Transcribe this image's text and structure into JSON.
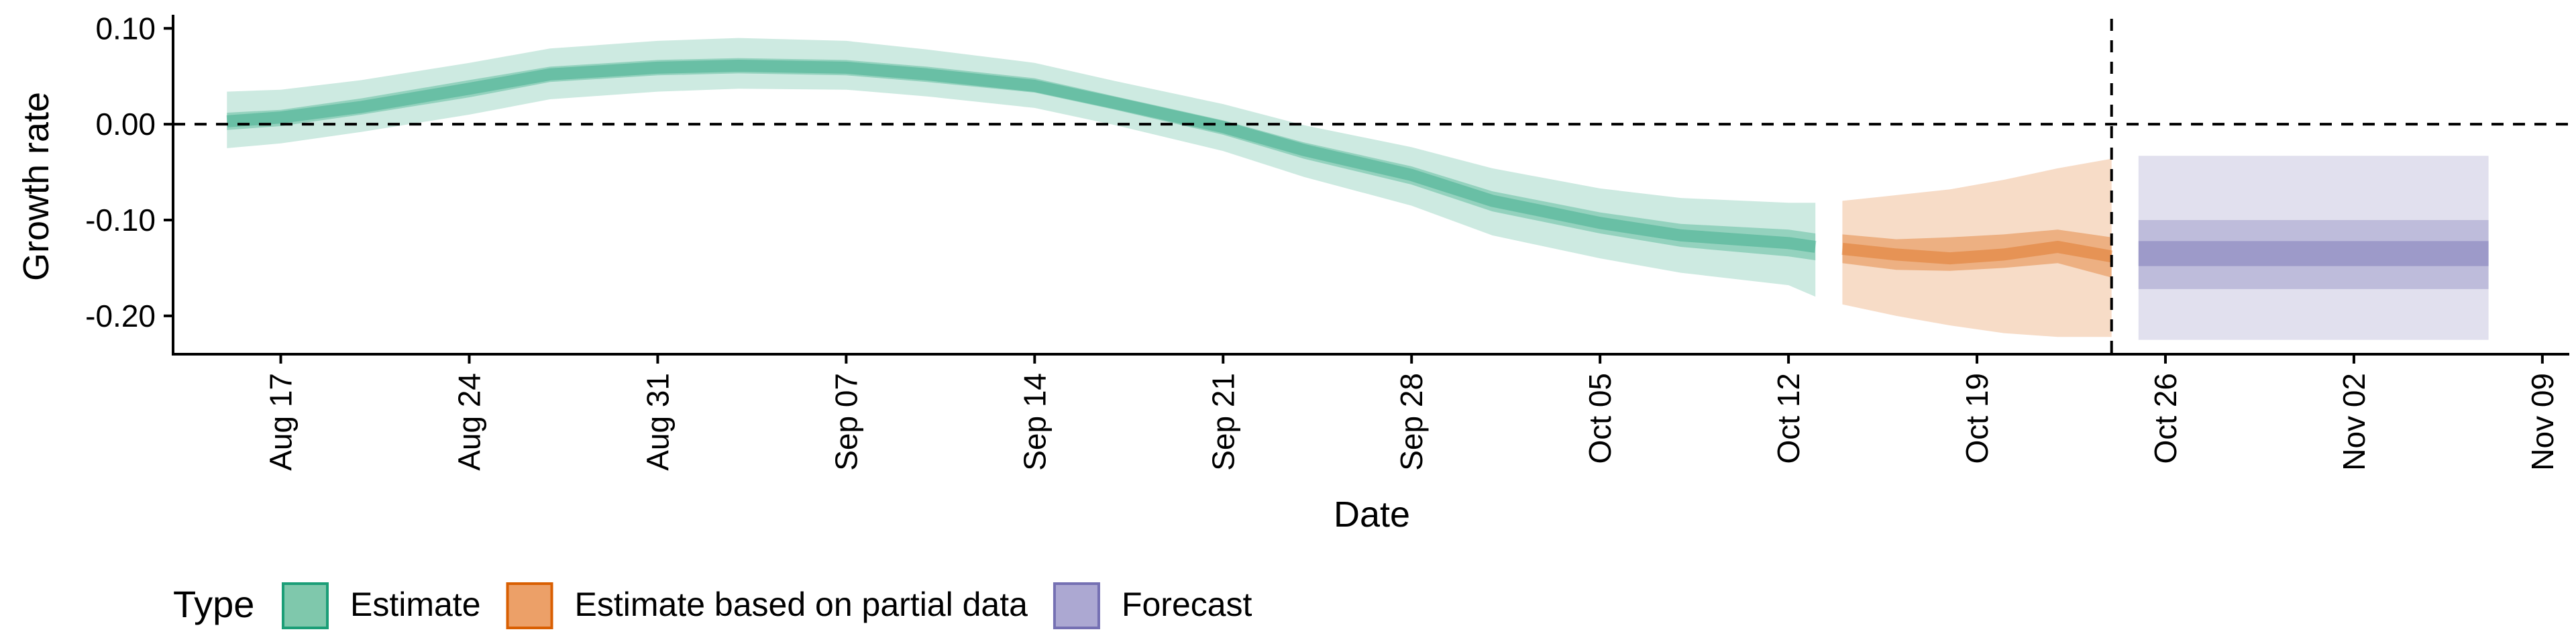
{
  "chart_data": {
    "type": "area",
    "xlabel": "Date",
    "ylabel": "Growth rate",
    "x_start": "2020-08-13",
    "x_end": "2020-11-10",
    "ylim": [
      -0.24,
      0.11
    ],
    "y_ticks": [
      0.1,
      0.0,
      -0.1,
      -0.2
    ],
    "y_tick_labels": [
      "0.10",
      "0.00",
      "-0.10",
      "-0.20"
    ],
    "x_ticks": [
      "2020-08-17",
      "2020-08-24",
      "2020-08-31",
      "2020-09-07",
      "2020-09-14",
      "2020-09-21",
      "2020-09-28",
      "2020-10-05",
      "2020-10-12",
      "2020-10-19",
      "2020-10-26",
      "2020-11-02",
      "2020-11-09"
    ],
    "x_tick_labels": [
      "Aug 17",
      "Aug 24",
      "Aug 31",
      "Sep 07",
      "Sep 14",
      "Sep 21",
      "Sep 28",
      "Oct 05",
      "Oct 12",
      "Oct 19",
      "Oct 26",
      "Nov 02",
      "Nov 09"
    ],
    "hline": {
      "y": 0.0,
      "style": "dashed"
    },
    "vline": {
      "x": "2020-10-24",
      "style": "dashed"
    },
    "grid": false,
    "legend": {
      "title": "Type",
      "position": "bottom-left",
      "entries": [
        {
          "label": "Estimate",
          "fill": "#7FC8AC",
          "stroke": "#1B9E77"
        },
        {
          "label": "Estimate based on partial data",
          "fill": "#ECA068",
          "stroke": "#D95F02"
        },
        {
          "label": "Forecast",
          "fill": "#ACA8D2",
          "stroke": "#7570B3"
        }
      ]
    },
    "series": [
      {
        "name": "Estimate",
        "color": "#1B9E77",
        "x": [
          "2020-08-15",
          "2020-08-17",
          "2020-08-20",
          "2020-08-24",
          "2020-08-27",
          "2020-08-31",
          "2020-09-03",
          "2020-09-07",
          "2020-09-10",
          "2020-09-14",
          "2020-09-17",
          "2020-09-21",
          "2020-09-24",
          "2020-09-28",
          "2020-10-01",
          "2020-10-05",
          "2020-10-08",
          "2020-10-12",
          "2020-10-13"
        ],
        "median": [
          0.003,
          0.007,
          0.018,
          0.037,
          0.052,
          0.059,
          0.061,
          0.059,
          0.052,
          0.04,
          0.022,
          -0.003,
          -0.027,
          -0.053,
          -0.08,
          -0.103,
          -0.116,
          -0.124,
          -0.128
        ],
        "lower_50": [
          -0.006,
          -0.002,
          0.01,
          0.028,
          0.044,
          0.051,
          0.053,
          0.051,
          0.044,
          0.033,
          0.015,
          -0.011,
          -0.036,
          -0.063,
          -0.091,
          -0.114,
          -0.128,
          -0.138,
          -0.142
        ],
        "upper_50": [
          0.012,
          0.015,
          0.027,
          0.046,
          0.06,
          0.067,
          0.069,
          0.067,
          0.06,
          0.048,
          0.029,
          0.004,
          -0.019,
          -0.044,
          -0.07,
          -0.092,
          -0.104,
          -0.11,
          -0.114
        ],
        "lower_90": [
          -0.025,
          -0.02,
          -0.008,
          0.01,
          0.026,
          0.034,
          0.037,
          0.036,
          0.029,
          0.017,
          -0.001,
          -0.028,
          -0.055,
          -0.085,
          -0.116,
          -0.14,
          -0.155,
          -0.168,
          -0.18
        ],
        "upper_90": [
          0.034,
          0.036,
          0.046,
          0.064,
          0.079,
          0.087,
          0.09,
          0.087,
          0.078,
          0.064,
          0.045,
          0.021,
          -0.001,
          -0.024,
          -0.046,
          -0.067,
          -0.077,
          -0.082,
          -0.082
        ]
      },
      {
        "name": "Estimate based on partial data",
        "color": "#D95F02",
        "x": [
          "2020-10-14",
          "2020-10-16",
          "2020-10-18",
          "2020-10-20",
          "2020-10-22",
          "2020-10-24"
        ],
        "median": [
          -0.13,
          -0.136,
          -0.14,
          -0.136,
          -0.128,
          -0.138
        ],
        "lower_50": [
          -0.145,
          -0.152,
          -0.153,
          -0.15,
          -0.145,
          -0.16
        ],
        "upper_50": [
          -0.115,
          -0.12,
          -0.118,
          -0.115,
          -0.11,
          -0.118
        ],
        "lower_90": [
          -0.188,
          -0.2,
          -0.21,
          -0.218,
          -0.222,
          -0.222
        ],
        "upper_90": [
          -0.08,
          -0.074,
          -0.068,
          -0.058,
          -0.046,
          -0.036
        ]
      },
      {
        "name": "Forecast",
        "color": "#7570B3",
        "x": [
          "2020-10-25",
          "2020-11-07"
        ],
        "median": [
          -0.135,
          -0.135
        ],
        "lower_30": [
          -0.148,
          -0.148
        ],
        "upper_30": [
          -0.122,
          -0.122
        ],
        "lower_60": [
          -0.172,
          -0.172
        ],
        "upper_60": [
          -0.1,
          -0.1
        ],
        "lower_90": [
          -0.225,
          -0.225
        ],
        "upper_90": [
          -0.033,
          -0.033
        ]
      }
    ]
  }
}
